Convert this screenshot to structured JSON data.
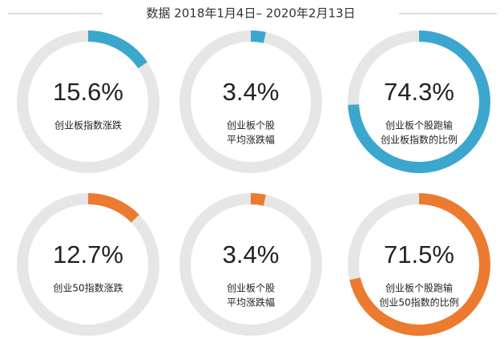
{
  "title": "数据 2018年1月4日– 2020年2月13日",
  "chart_data": [
    {
      "type": "donut",
      "values": [
        15.6
      ],
      "value_labels": [
        "15.6%"
      ],
      "label": [
        "创业板指数涨跌"
      ],
      "color": "#3ba7cf"
    },
    {
      "type": "donut",
      "values": [
        3.4
      ],
      "value_labels": [
        "3.4%"
      ],
      "label": [
        "创业板个股",
        "平均涨跌幅"
      ],
      "color": "#3ba7cf"
    },
    {
      "type": "donut",
      "values": [
        74.3
      ],
      "value_labels": [
        "74.3%"
      ],
      "label": [
        "创业板个股跑输",
        "创业板指数的比例"
      ],
      "color": "#3ba7cf"
    },
    {
      "type": "donut",
      "values": [
        12.7
      ],
      "value_labels": [
        "12.7%"
      ],
      "label": [
        "创业50指数涨跌"
      ],
      "color": "#ec7a2f"
    },
    {
      "type": "donut",
      "values": [
        3.4
      ],
      "value_labels": [
        "3.4%"
      ],
      "label": [
        "创业板个股",
        "平均涨跌幅"
      ],
      "color": "#ec7a2f"
    },
    {
      "type": "donut",
      "values": [
        71.5
      ],
      "value_labels": [
        "71.5%"
      ],
      "label": [
        "创业板个股跑输",
        "创业50指数的比例"
      ],
      "color": "#ec7a2f"
    }
  ]
}
